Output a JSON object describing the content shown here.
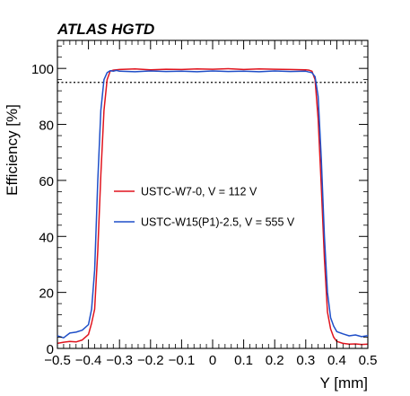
{
  "chart_data": {
    "type": "line",
    "header": "ATLAS HGTD",
    "xlabel": "Y [mm]",
    "ylabel": "Efficiency [%]",
    "xlim": [
      -0.5,
      0.5
    ],
    "ylim": [
      0,
      110
    ],
    "xticks": [
      "−0.5",
      "−0.4",
      "−0.3",
      "−0.2",
      "−0.1",
      "0",
      "0.1",
      "0.2",
      "0.3",
      "0.4",
      "0.5"
    ],
    "yticks": [
      "0",
      "20",
      "40",
      "60",
      "80",
      "100"
    ],
    "reference_line": {
      "y": 95,
      "style": "dotted",
      "color": "#000000"
    },
    "legend_position": "center-left",
    "series": [
      {
        "name": "USTC-W7-0, V = 112 V",
        "color": "#e0141e",
        "x": [
          -0.5,
          -0.48,
          -0.46,
          -0.44,
          -0.42,
          -0.4,
          -0.39,
          -0.38,
          -0.37,
          -0.36,
          -0.35,
          -0.34,
          -0.33,
          -0.32,
          -0.31,
          -0.3,
          -0.25,
          -0.2,
          -0.15,
          -0.1,
          -0.05,
          0,
          0.05,
          0.1,
          0.15,
          0.2,
          0.25,
          0.3,
          0.31,
          0.32,
          0.33,
          0.34,
          0.35,
          0.36,
          0.37,
          0.38,
          0.39,
          0.4,
          0.42,
          0.44,
          0.46,
          0.48,
          0.5
        ],
        "y": [
          1.8,
          2.2,
          2.5,
          2.3,
          3.0,
          5.0,
          9.0,
          14.0,
          35.0,
          62.0,
          85.0,
          96.0,
          99.0,
          99.4,
          99.5,
          99.6,
          99.8,
          99.5,
          99.7,
          99.6,
          99.8,
          99.7,
          99.9,
          99.6,
          99.8,
          99.7,
          99.6,
          99.5,
          99.4,
          99.0,
          96.0,
          82.0,
          58.0,
          32.0,
          13.0,
          7.0,
          4.0,
          2.5,
          1.8,
          1.5,
          1.6,
          1.4,
          1.5
        ]
      },
      {
        "name": "USTC-W15(P1)-2.5, V = 555 V",
        "color": "#1f4fc8",
        "x": [
          -0.5,
          -0.48,
          -0.46,
          -0.44,
          -0.42,
          -0.4,
          -0.39,
          -0.38,
          -0.37,
          -0.36,
          -0.35,
          -0.34,
          -0.33,
          -0.32,
          -0.31,
          -0.3,
          -0.25,
          -0.2,
          -0.15,
          -0.1,
          -0.05,
          0,
          0.05,
          0.1,
          0.15,
          0.2,
          0.25,
          0.3,
          0.31,
          0.32,
          0.33,
          0.34,
          0.35,
          0.36,
          0.37,
          0.38,
          0.39,
          0.4,
          0.42,
          0.44,
          0.46,
          0.48,
          0.5
        ],
        "y": [
          4.5,
          3.8,
          5.5,
          5.8,
          6.5,
          8.5,
          14.0,
          28.0,
          60.0,
          85.0,
          96.0,
          98.5,
          99.2,
          99.0,
          99.3,
          99.0,
          98.8,
          99.1,
          98.9,
          99.0,
          98.8,
          99.1,
          98.9,
          99.0,
          98.8,
          99.1,
          98.9,
          99.0,
          98.7,
          98.5,
          97.0,
          90.0,
          68.0,
          40.0,
          20.0,
          11.0,
          8.0,
          6.0,
          5.2,
          4.5,
          4.8,
          4.2,
          4.6
        ]
      }
    ]
  }
}
